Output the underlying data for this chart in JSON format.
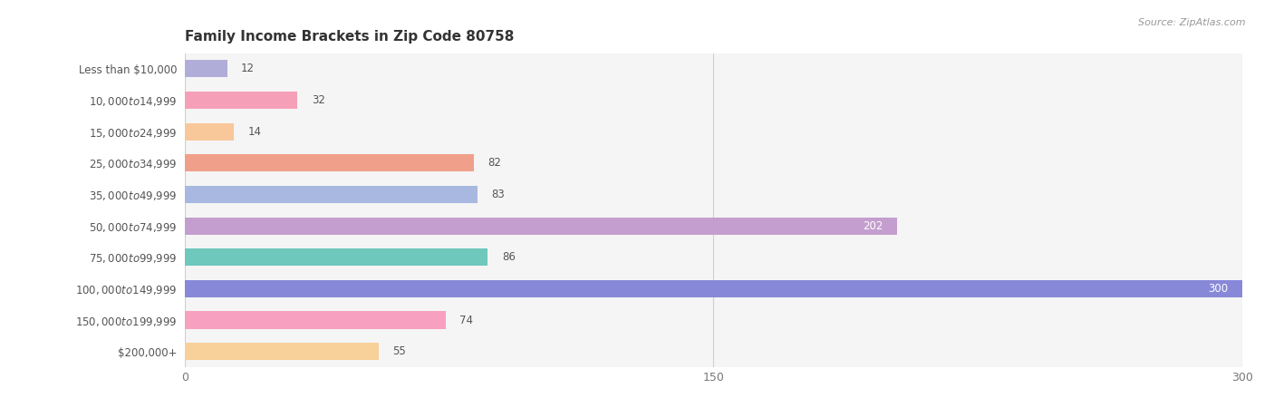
{
  "title": "Family Income Brackets in Zip Code 80758",
  "source": "Source: ZipAtlas.com",
  "categories": [
    "Less than $10,000",
    "$10,000 to $14,999",
    "$15,000 to $24,999",
    "$25,000 to $34,999",
    "$35,000 to $49,999",
    "$50,000 to $74,999",
    "$75,000 to $99,999",
    "$100,000 to $149,999",
    "$150,000 to $199,999",
    "$200,000+"
  ],
  "values": [
    12,
    32,
    14,
    82,
    83,
    202,
    86,
    300,
    74,
    55
  ],
  "bar_colors": [
    "#b0aed8",
    "#f5a0b8",
    "#f8c89a",
    "#f0a08a",
    "#a8b8e0",
    "#c49ece",
    "#6ec8bc",
    "#8888d8",
    "#f8a0c0",
    "#f8d09a"
  ],
  "xlim": [
    0,
    300
  ],
  "xticks": [
    0,
    150,
    300
  ],
  "title_fontsize": 11,
  "label_fontsize": 8.5,
  "value_fontsize": 8.5,
  "bar_height": 0.55,
  "background_color": "#ffffff",
  "row_bg_color": "#f2f2f2",
  "row_bg_alt": "#ffffff",
  "label_color": "#555555",
  "value_color_outside": "#555555",
  "value_color_inside": "#ffffff",
  "inside_threshold": 200
}
